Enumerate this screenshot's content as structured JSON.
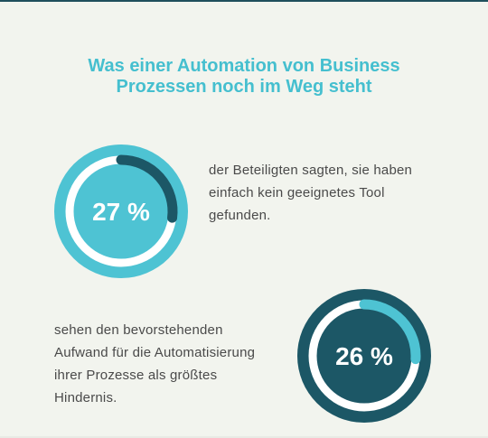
{
  "title": {
    "line1": "Was einer Automation von Business",
    "line2": "Prozessen noch im Weg steht"
  },
  "stats": [
    {
      "label": "27 %",
      "text_lines": [
        "der Beteiligten sagten, sie haben",
        "einfach kein geeignetes Tool",
        "gefunden."
      ]
    },
    {
      "label": "26 %",
      "text_lines": [
        "sehen den bevorstehenden",
        "Aufwand für die Automatisierung",
        "ihrer Prozesse als größtes",
        "Hindernis."
      ]
    }
  ],
  "colors": {
    "accent_light": "#4ec3d3",
    "accent_dark": "#1c5766",
    "ring": "#ffffff",
    "title": "#45bfcf",
    "text": "#4a4a4a",
    "background": "#f2f4ee"
  },
  "chart_data": [
    {
      "type": "pie",
      "style": "donut-progress",
      "value": 27,
      "max": 100,
      "label": "27 %",
      "theme": "light"
    },
    {
      "type": "pie",
      "style": "donut-progress",
      "value": 26,
      "max": 100,
      "label": "26 %",
      "theme": "dark"
    }
  ]
}
